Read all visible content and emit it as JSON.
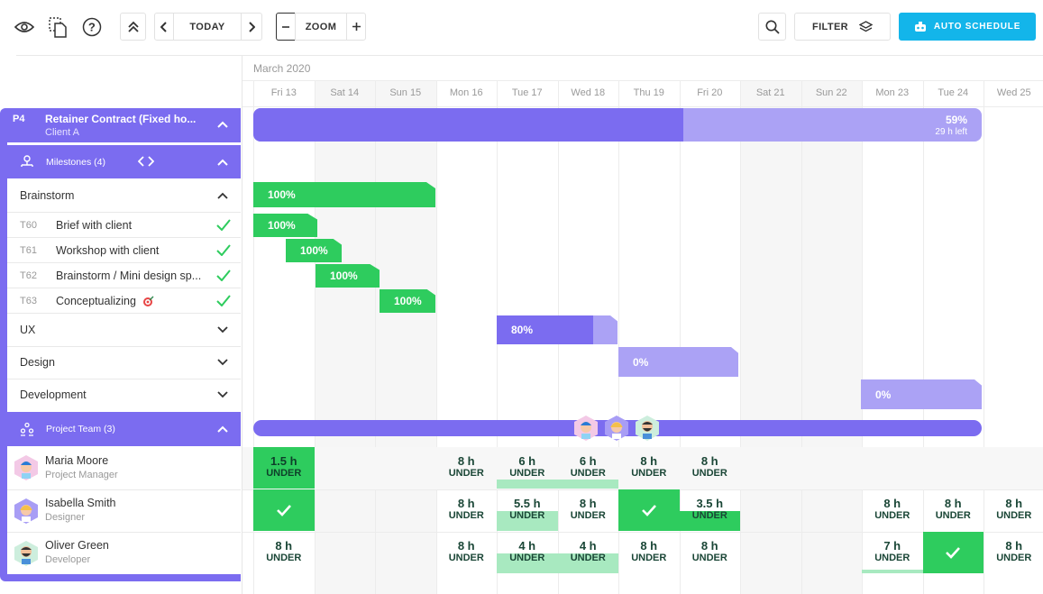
{
  "toolbar": {
    "today_label": "TODAY",
    "zoom_label": "ZOOM",
    "filter_label": "FILTER",
    "auto_label": "AUTO SCHEDULE"
  },
  "calendar": {
    "month": "March 2020",
    "days": [
      "Fri 13",
      "Sat 14",
      "Sun 15",
      "Mon 16",
      "Tue 17",
      "Wed 18",
      "Thu 19",
      "Fri 20",
      "Sat 21",
      "Sun 22",
      "Mon 23",
      "Tue 24",
      "Wed 25"
    ]
  },
  "project": {
    "code": "P4",
    "title": "Retainer Contract (Fixed ho...",
    "client": "Client A",
    "progress": "59%",
    "left": "29 h left",
    "progress_value": 59
  },
  "milestones": {
    "label": "Milestones (4)",
    "groups": [
      {
        "name": "Brainstorm",
        "progress": "100%"
      },
      {
        "name": "UX",
        "progress": "80%"
      },
      {
        "name": "Design",
        "progress": "0%"
      },
      {
        "name": "Development",
        "progress": "0%"
      }
    ],
    "tasks": [
      {
        "id": "T60",
        "name": "Brief with client",
        "progress": "100%"
      },
      {
        "id": "T61",
        "name": "Workshop with client",
        "progress": "100%"
      },
      {
        "id": "T62",
        "name": "Brainstorm / Mini design sp...",
        "progress": "100%"
      },
      {
        "id": "T63",
        "name": "Conceptualizing",
        "progress": "100%"
      }
    ]
  },
  "team": {
    "label": "Project Team (3)",
    "members": [
      {
        "name": "Maria Moore",
        "role": "Project Manager"
      },
      {
        "name": "Isabella Smith",
        "role": "Designer"
      },
      {
        "name": "Oliver Green",
        "role": "Developer"
      }
    ],
    "workload": [
      [
        {
          "h": "1.5 h",
          "u": "UNDER"
        },
        null,
        null,
        {
          "h": "8 h",
          "u": "UNDER"
        },
        {
          "h": "6 h",
          "u": "UNDER"
        },
        {
          "h": "6 h",
          "u": "UNDER"
        },
        {
          "h": "8 h",
          "u": "UNDER"
        },
        {
          "h": "8 h",
          "u": "UNDER"
        },
        null,
        null,
        null,
        null,
        null
      ],
      [
        {
          "check": true
        },
        null,
        null,
        {
          "h": "8 h",
          "u": "UNDER"
        },
        {
          "h": "5.5 h",
          "u": "UNDER"
        },
        {
          "h": "8 h",
          "u": "UNDER"
        },
        {
          "check": true
        },
        {
          "h": "3.5 h",
          "u": "UNDER"
        },
        null,
        null,
        {
          "h": "8 h",
          "u": "UNDER"
        },
        {
          "h": "8 h",
          "u": "UNDER"
        },
        {
          "h": "8 h",
          "u": "UNDER"
        }
      ],
      [
        {
          "h": "8 h",
          "u": "UNDER"
        },
        null,
        null,
        {
          "h": "8 h",
          "u": "UNDER"
        },
        {
          "h": "4 h",
          "u": "UNDER"
        },
        {
          "h": "4 h",
          "u": "UNDER"
        },
        {
          "h": "8 h",
          "u": "UNDER"
        },
        {
          "h": "8 h",
          "u": "UNDER"
        },
        null,
        null,
        {
          "h": "7 h",
          "u": "UNDER"
        },
        {
          "check": true
        },
        {
          "h": "8 h",
          "u": "UNDER"
        }
      ]
    ]
  },
  "colors": {
    "purple": "#7b6cf0",
    "purple_light": "#aba2f5",
    "green": "#2ecc5e",
    "green_light": "#a8e9c0",
    "blue": "#13b5ea"
  }
}
